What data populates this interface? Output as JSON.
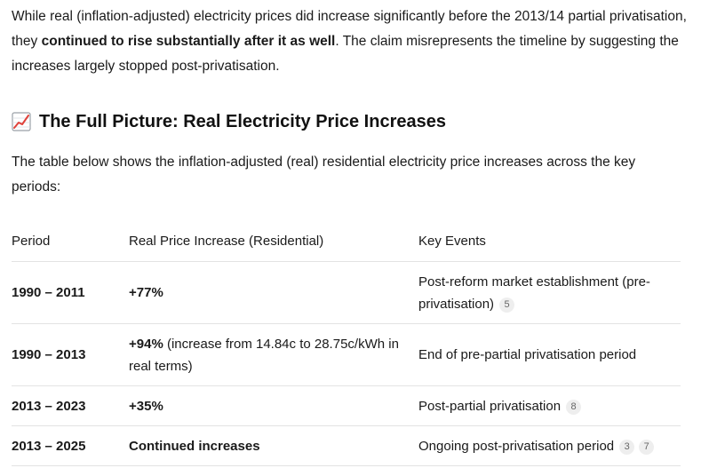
{
  "intro": {
    "part1": "While real (inflation-adjusted) electricity prices did increase significantly before the 2013/14 partial privatisation, they ",
    "bold": "continued to rise substantially after it as well",
    "part2": ". The claim misrepresents the timeline by suggesting the increases largely stopped post-privatisation."
  },
  "heading": {
    "icon": "chart-increasing-icon",
    "title": "The Full Picture: Real Electricity Price Increases"
  },
  "lead": "The table below shows the inflation-adjusted (real) residential electricity price increases across the key periods:",
  "table": {
    "headers": [
      "Period",
      "Real Price Increase (Residential)",
      "Key Events"
    ],
    "rows": [
      {
        "period": "1990 – 2011",
        "increase_bold": "+77%",
        "increase_rest": "",
        "event": "Post-reform market establishment (pre-privatisation)",
        "citations": [
          "5"
        ]
      },
      {
        "period": "1990 – 2013",
        "increase_bold": "+94%",
        "increase_rest": " (increase from 14.84c to 28.75c/kWh in real terms)",
        "event": "End of pre-partial privatisation period",
        "citations": []
      },
      {
        "period": "2013 – 2023",
        "increase_bold": "+35%",
        "increase_rest": "",
        "event": "Post-partial privatisation",
        "citations": [
          "8"
        ]
      },
      {
        "period": "2013 – 2025",
        "increase_bold": "Continued increases",
        "increase_rest": "",
        "event": "Ongoing post-privatisation period",
        "citations": [
          "3",
          "7"
        ]
      }
    ]
  },
  "colors": {
    "text": "#1a1a1a",
    "border": "#e3e3e3",
    "citation_bg": "#eeeeee",
    "citation_text": "#666666",
    "icon_line": "#e0413a"
  }
}
